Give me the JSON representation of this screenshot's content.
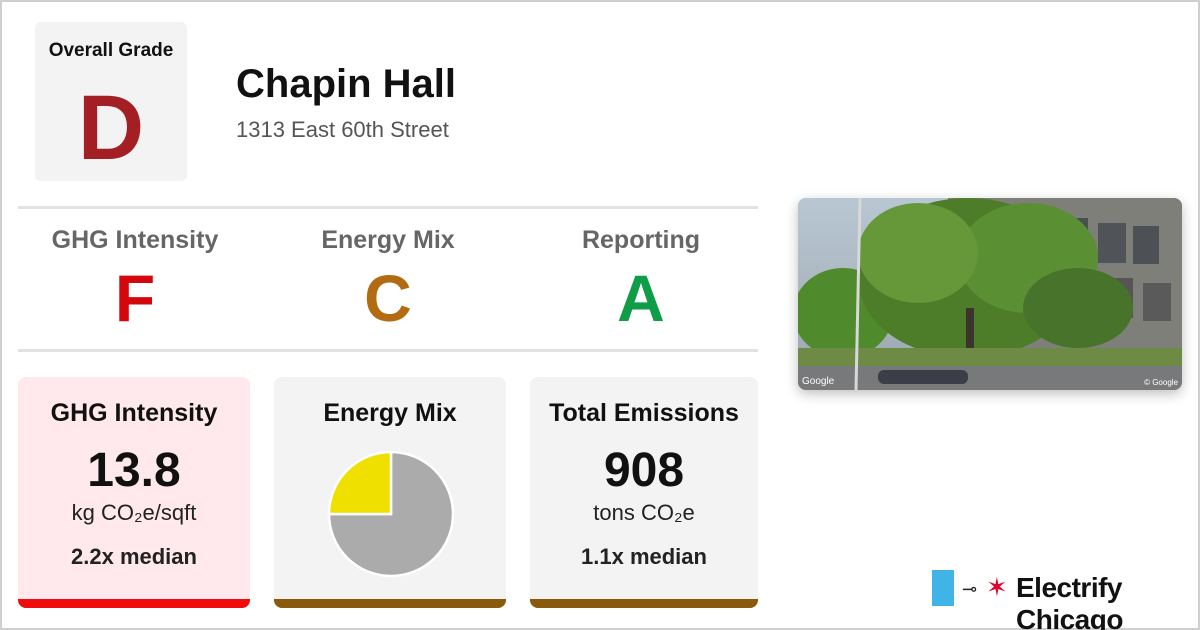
{
  "overall": {
    "label": "Overall Grade",
    "grade": "D",
    "color": "#a31f24"
  },
  "building": {
    "name": "Chapin Hall",
    "address": "1313 East 60th Street"
  },
  "sub_grades": [
    {
      "label": "GHG Intensity",
      "grade": "F",
      "color": "#d4070d"
    },
    {
      "label": "Energy Mix",
      "grade": "C",
      "color": "#b36b12"
    },
    {
      "label": "Reporting",
      "grade": "A",
      "color": "#0f9d48"
    }
  ],
  "cards": {
    "ghg": {
      "title": "GHG Intensity",
      "value": "13.8",
      "unit": "kg CO₂e/sqft",
      "median": "2.2x median",
      "bg": "#ffe9ec",
      "bar_color": "#f00c0c"
    },
    "mix": {
      "title": "Energy Mix",
      "bg": "#f3f3f3",
      "bar_color": "#8a5a0c"
    },
    "emissions": {
      "title": "Total Emissions",
      "value": "908",
      "unit": "tons CO₂e",
      "median": "1.1x median",
      "bg": "#f3f3f3",
      "bar_color": "#8a5a0c"
    }
  },
  "chart_data": {
    "type": "pie",
    "title": "",
    "slices": [
      {
        "value": 0.75,
        "color": "#ababab"
      },
      {
        "value": 0.25,
        "color": "#f0e000"
      }
    ]
  },
  "photo": {
    "watermark_left": "Google",
    "watermark_right": "© Google"
  },
  "brand": {
    "name": "Electrify Chicago",
    "flag_color": "#40b4e6",
    "star_color": "#e4002b"
  }
}
